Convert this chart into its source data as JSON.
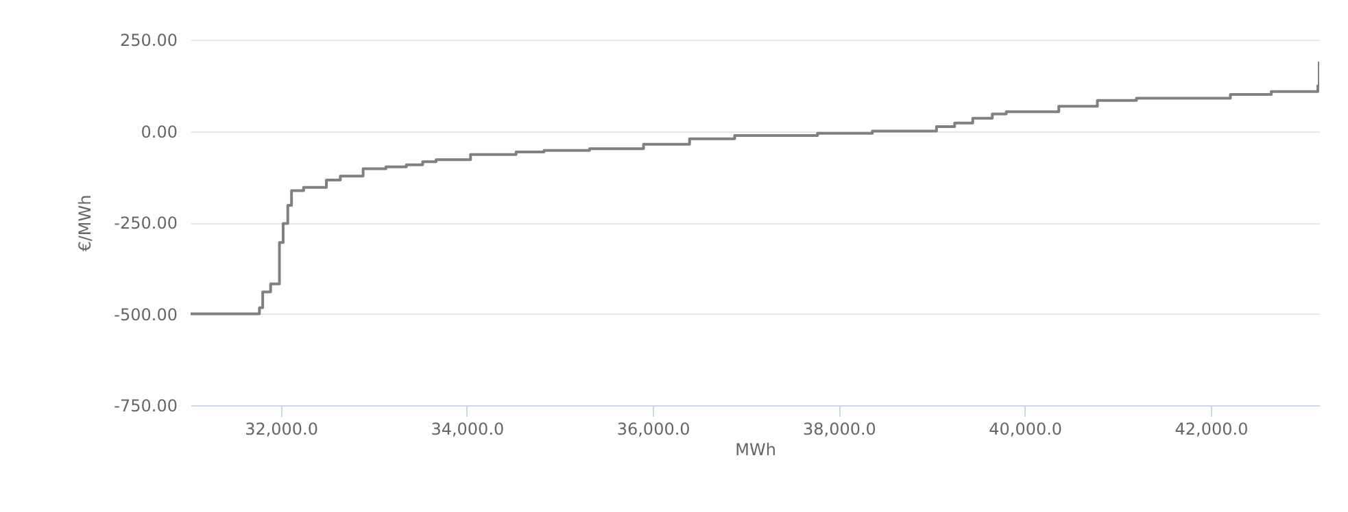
{
  "chart_data": {
    "type": "step",
    "xlabel": "MWh",
    "ylabel": "€/MWh",
    "series": [
      {
        "color": "#808080",
        "x": [
          31030,
          31770,
          31805,
          31890,
          31985,
          32025,
          32075,
          32115,
          32245,
          32490,
          32640,
          32885,
          33130,
          33350,
          33525,
          33670,
          34040,
          34530,
          34830,
          35320,
          35900,
          36395,
          36880,
          37770,
          38360,
          39050,
          39245,
          39440,
          39650,
          39800,
          40365,
          40780,
          41200,
          42210,
          42650,
          43150,
          43165
        ],
        "values": [
          -500,
          -483,
          -440,
          -418,
          -305,
          -253,
          -203,
          -163,
          -154,
          -134,
          -123,
          -103,
          -98,
          -92,
          -84,
          -78,
          -64,
          -57,
          -53,
          -48,
          -36,
          -21,
          -12,
          -6,
          0,
          12,
          22,
          35,
          47,
          53,
          68,
          84,
          90,
          100,
          108,
          124,
          190
        ]
      }
    ],
    "xlim": [
      31030,
      43165
    ],
    "xticks": [
      {
        "value": 32000,
        "label": "32,000.0"
      },
      {
        "value": 34000,
        "label": "34,000.0"
      },
      {
        "value": 36000,
        "label": "36,000.0"
      },
      {
        "value": 38000,
        "label": "38,000.0"
      },
      {
        "value": 40000,
        "label": "40,000.0"
      },
      {
        "value": 42000,
        "label": "42,000.0"
      }
    ],
    "ylim": [
      -750,
      250
    ],
    "yticks": [
      {
        "value": -750,
        "label": "-750.00"
      },
      {
        "value": -500,
        "label": "-500.00"
      },
      {
        "value": -250,
        "label": "-250.00"
      },
      {
        "value": 0,
        "label": "0.00"
      },
      {
        "value": 250,
        "label": "250.00"
      }
    ],
    "grid": "y",
    "marker": "none",
    "line_style": "solid"
  }
}
